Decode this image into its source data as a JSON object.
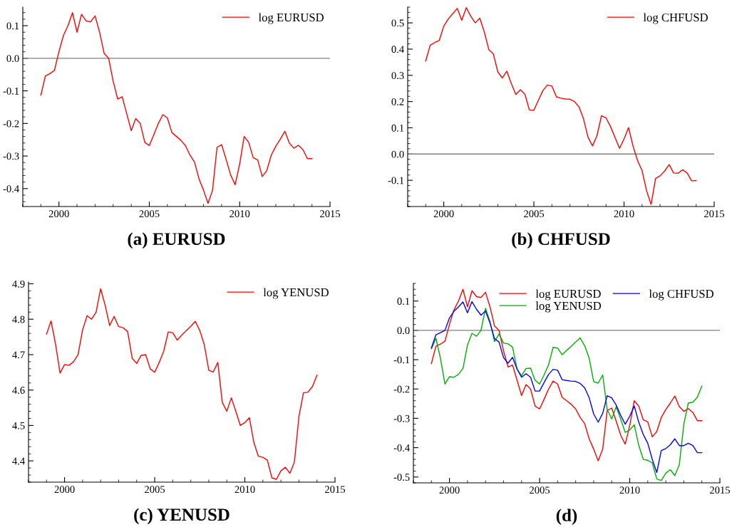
{
  "chart_data": [
    {
      "type": "line",
      "title": "(a) EURUSD",
      "legend": "top right",
      "grid": false,
      "marker": "none",
      "line_style": "solid",
      "x": [
        1999.0,
        1999.25,
        1999.5,
        1999.75,
        2000.0,
        2000.25,
        2000.5,
        2000.75,
        2001.0,
        2001.25,
        2001.5,
        2001.75,
        2002.0,
        2002.25,
        2002.5,
        2002.75,
        2003.0,
        2003.25,
        2003.5,
        2003.75,
        2004.0,
        2004.25,
        2004.5,
        2004.75,
        2005.0,
        2005.25,
        2005.5,
        2005.75,
        2006.0,
        2006.25,
        2006.5,
        2006.75,
        2007.0,
        2007.25,
        2007.5,
        2007.75,
        2008.0,
        2008.25,
        2008.5,
        2008.75,
        2009.0,
        2009.25,
        2009.5,
        2009.75,
        2010.0,
        2010.25,
        2010.5,
        2010.75,
        2011.0,
        2011.25,
        2011.5,
        2011.75,
        2012.0,
        2012.25,
        2012.5,
        2012.75,
        2013.0,
        2013.25,
        2013.5,
        2013.75,
        2014.0
      ],
      "series": [
        {
          "name": "log EURUSD",
          "color": "#ff0000",
          "values": [
            -0.113,
            -0.054,
            -0.047,
            -0.037,
            0.02,
            0.07,
            0.1,
            0.14,
            0.08,
            0.135,
            0.115,
            0.112,
            0.13,
            0.08,
            0.015,
            0.0,
            -0.07,
            -0.125,
            -0.118,
            -0.17,
            -0.222,
            -0.185,
            -0.2,
            -0.258,
            -0.268,
            -0.235,
            -0.2,
            -0.173,
            -0.183,
            -0.228,
            -0.24,
            -0.252,
            -0.268,
            -0.297,
            -0.318,
            -0.37,
            -0.405,
            -0.445,
            -0.405,
            -0.273,
            -0.265,
            -0.31,
            -0.358,
            -0.388,
            -0.325,
            -0.24,
            -0.258,
            -0.305,
            -0.312,
            -0.363,
            -0.345,
            -0.297,
            -0.27,
            -0.248,
            -0.224,
            -0.26,
            -0.276,
            -0.267,
            -0.28,
            -0.308,
            -0.308
          ]
        }
      ],
      "xlim": [
        1998,
        2015
      ],
      "xticks": [
        2000,
        2005,
        2010,
        2015
      ],
      "ylim": [
        -0.455,
        0.157
      ],
      "yticks": [
        {
          "value": -0.4,
          "label": "-0.4"
        },
        {
          "value": -0.3,
          "label": "-0.3"
        },
        {
          "value": -0.2,
          "label": "-0.2"
        },
        {
          "value": -0.1,
          "label": "-0.1"
        },
        {
          "value": 0,
          "label": "0.0"
        },
        {
          "value": 0.1,
          "label": "0.1"
        }
      ],
      "ref_lines": [
        {
          "axis": "y",
          "value": 0,
          "color": "#808080"
        }
      ]
    },
    {
      "type": "line",
      "title": "(b) CHFUSD",
      "legend": "top right",
      "grid": false,
      "marker": "none",
      "line_style": "solid",
      "x": [
        1999.0,
        1999.25,
        1999.5,
        1999.75,
        2000.0,
        2000.25,
        2000.5,
        2000.75,
        2001.0,
        2001.25,
        2001.5,
        2001.75,
        2002.0,
        2002.25,
        2002.5,
        2002.75,
        2003.0,
        2003.25,
        2003.5,
        2003.75,
        2004.0,
        2004.25,
        2004.5,
        2004.75,
        2005.0,
        2005.25,
        2005.5,
        2005.75,
        2006.0,
        2006.25,
        2006.5,
        2006.75,
        2007.0,
        2007.25,
        2007.5,
        2007.75,
        2008.0,
        2008.25,
        2008.5,
        2008.75,
        2009.0,
        2009.25,
        2009.5,
        2009.75,
        2010.0,
        2010.25,
        2010.5,
        2010.75,
        2011.0,
        2011.25,
        2011.5,
        2011.75,
        2012.0,
        2012.25,
        2012.5,
        2012.75,
        2013.0,
        2013.25,
        2013.5,
        2013.75,
        2014.0
      ],
      "series": [
        {
          "name": "log CHFUSD",
          "color": "#ff0000",
          "values": [
            0.355,
            0.415,
            0.425,
            0.433,
            0.487,
            0.515,
            0.535,
            0.555,
            0.51,
            0.558,
            0.525,
            0.5,
            0.518,
            0.465,
            0.398,
            0.382,
            0.313,
            0.29,
            0.316,
            0.268,
            0.227,
            0.245,
            0.228,
            0.168,
            0.167,
            0.205,
            0.242,
            0.263,
            0.259,
            0.218,
            0.213,
            0.21,
            0.209,
            0.2,
            0.18,
            0.135,
            0.065,
            0.031,
            0.07,
            0.146,
            0.138,
            0.105,
            0.063,
            0.022,
            0.057,
            0.101,
            0.03,
            -0.025,
            -0.063,
            -0.14,
            -0.192,
            -0.093,
            -0.083,
            -0.065,
            -0.04,
            -0.072,
            -0.073,
            -0.06,
            -0.072,
            -0.102,
            -0.101
          ]
        }
      ],
      "xlim": [
        1998,
        2015
      ],
      "xticks": [
        2000,
        2005,
        2010,
        2015
      ],
      "ylim": [
        -0.2,
        0.56
      ],
      "yticks": [
        {
          "value": -0.1,
          "label": "-0.1"
        },
        {
          "value": 0,
          "label": "0.0"
        },
        {
          "value": 0.1,
          "label": "0.1"
        },
        {
          "value": 0.2,
          "label": "0.2"
        },
        {
          "value": 0.3,
          "label": "0.3"
        },
        {
          "value": 0.4,
          "label": "0.4"
        },
        {
          "value": 0.5,
          "label": "0.5"
        }
      ],
      "ref_lines": [
        {
          "axis": "y",
          "value": 0,
          "color": "#808080"
        }
      ]
    },
    {
      "type": "line",
      "title": "(c) YENUSD",
      "legend": "top right",
      "grid": false,
      "marker": "none",
      "line_style": "solid",
      "x": [
        1999.0,
        1999.25,
        1999.5,
        1999.75,
        2000.0,
        2000.25,
        2000.5,
        2000.75,
        2001.0,
        2001.25,
        2001.5,
        2001.75,
        2002.0,
        2002.25,
        2002.5,
        2002.75,
        2003.0,
        2003.25,
        2003.5,
        2003.75,
        2004.0,
        2004.25,
        2004.5,
        2004.75,
        2005.0,
        2005.25,
        2005.5,
        2005.75,
        2006.0,
        2006.25,
        2006.5,
        2006.75,
        2007.0,
        2007.25,
        2007.5,
        2007.75,
        2008.0,
        2008.25,
        2008.5,
        2008.75,
        2009.0,
        2009.25,
        2009.5,
        2009.75,
        2010.0,
        2010.25,
        2010.5,
        2010.75,
        2011.0,
        2011.25,
        2011.5,
        2011.75,
        2012.0,
        2012.25,
        2012.5,
        2012.75,
        2013.0,
        2013.25,
        2013.5,
        2013.75,
        2014.0
      ],
      "series": [
        {
          "name": "log YENUSD",
          "color": "#ff0000",
          "values": [
            4.758,
            4.795,
            4.73,
            4.648,
            4.672,
            4.67,
            4.68,
            4.7,
            4.77,
            4.81,
            4.8,
            4.82,
            4.886,
            4.84,
            4.782,
            4.808,
            4.779,
            4.776,
            4.765,
            4.69,
            4.675,
            4.698,
            4.7,
            4.66,
            4.65,
            4.678,
            4.71,
            4.764,
            4.762,
            4.741,
            4.755,
            4.768,
            4.78,
            4.794,
            4.768,
            4.728,
            4.656,
            4.651,
            4.678,
            4.565,
            4.54,
            4.578,
            4.54,
            4.5,
            4.508,
            4.522,
            4.452,
            4.413,
            4.41,
            4.402,
            4.352,
            4.348,
            4.372,
            4.382,
            4.365,
            4.397,
            4.525,
            4.592,
            4.594,
            4.61,
            4.642
          ]
        }
      ],
      "xlim": [
        1998,
        2015
      ],
      "xticks": [
        2000,
        2005,
        2010,
        2015
      ],
      "ylim": [
        4.34,
        4.905
      ],
      "yticks": [
        4.4,
        4.5,
        4.6,
        4.7,
        4.8,
        4.9
      ]
    },
    {
      "type": "line",
      "title": "(d)",
      "legend": "top right",
      "grid": false,
      "marker": "none",
      "line_style": "solid",
      "x": [
        1999.0,
        1999.25,
        1999.5,
        1999.75,
        2000.0,
        2000.25,
        2000.5,
        2000.75,
        2001.0,
        2001.25,
        2001.5,
        2001.75,
        2002.0,
        2002.25,
        2002.5,
        2002.75,
        2003.0,
        2003.25,
        2003.5,
        2003.75,
        2004.0,
        2004.25,
        2004.5,
        2004.75,
        2005.0,
        2005.25,
        2005.5,
        2005.75,
        2006.0,
        2006.25,
        2006.5,
        2006.75,
        2007.0,
        2007.25,
        2007.5,
        2007.75,
        2008.0,
        2008.25,
        2008.5,
        2008.75,
        2009.0,
        2009.25,
        2009.5,
        2009.75,
        2010.0,
        2010.25,
        2010.5,
        2010.75,
        2011.0,
        2011.25,
        2011.5,
        2011.75,
        2012.0,
        2012.25,
        2012.5,
        2012.75,
        2013.0,
        2013.25,
        2013.5,
        2013.75,
        2014.0
      ],
      "series": [
        {
          "name": "log EURUSD",
          "color": "#ff0000",
          "values": [
            -0.113,
            -0.054,
            -0.047,
            -0.037,
            0.02,
            0.07,
            0.1,
            0.14,
            0.08,
            0.135,
            0.115,
            0.112,
            0.13,
            0.08,
            0.015,
            0.0,
            -0.07,
            -0.125,
            -0.118,
            -0.17,
            -0.222,
            -0.185,
            -0.2,
            -0.258,
            -0.268,
            -0.235,
            -0.2,
            -0.173,
            -0.183,
            -0.228,
            -0.24,
            -0.252,
            -0.268,
            -0.297,
            -0.318,
            -0.37,
            -0.405,
            -0.445,
            -0.405,
            -0.273,
            -0.265,
            -0.31,
            -0.358,
            -0.388,
            -0.325,
            -0.24,
            -0.258,
            -0.305,
            -0.312,
            -0.363,
            -0.345,
            -0.297,
            -0.27,
            -0.248,
            -0.224,
            -0.26,
            -0.276,
            -0.267,
            -0.28,
            -0.308,
            -0.308
          ]
        },
        {
          "name": "log YENUSD",
          "color": "#00b000",
          "values": [
            -0.063,
            -0.027,
            -0.095,
            -0.183,
            -0.158,
            -0.16,
            -0.15,
            -0.13,
            -0.05,
            -0.01,
            -0.02,
            0.0,
            0.075,
            0.03,
            -0.038,
            -0.012,
            -0.043,
            -0.046,
            -0.057,
            -0.132,
            -0.155,
            -0.13,
            -0.129,
            -0.17,
            -0.183,
            -0.152,
            -0.117,
            -0.058,
            -0.06,
            -0.083,
            -0.068,
            -0.055,
            -0.04,
            -0.026,
            -0.052,
            -0.095,
            -0.175,
            -0.18,
            -0.152,
            -0.27,
            -0.302,
            -0.26,
            -0.303,
            -0.348,
            -0.34,
            -0.322,
            -0.392,
            -0.44,
            -0.443,
            -0.452,
            -0.507,
            -0.512,
            -0.487,
            -0.475,
            -0.495,
            -0.458,
            -0.32,
            -0.248,
            -0.245,
            -0.228,
            -0.19
          ]
        },
        {
          "name": "log CHFUSD",
          "color": "#0000ff",
          "values": [
            -0.06,
            -0.015,
            -0.008,
            0.0,
            0.042,
            0.065,
            0.08,
            0.097,
            0.06,
            0.098,
            0.072,
            0.052,
            0.066,
            0.025,
            -0.028,
            -0.04,
            -0.093,
            -0.112,
            -0.092,
            -0.132,
            -0.16,
            -0.148,
            -0.16,
            -0.207,
            -0.207,
            -0.178,
            -0.15,
            -0.133,
            -0.136,
            -0.168,
            -0.171,
            -0.173,
            -0.174,
            -0.181,
            -0.196,
            -0.23,
            -0.285,
            -0.313,
            -0.283,
            -0.223,
            -0.23,
            -0.255,
            -0.29,
            -0.32,
            -0.293,
            -0.258,
            -0.313,
            -0.355,
            -0.385,
            -0.44,
            -0.485,
            -0.41,
            -0.403,
            -0.39,
            -0.37,
            -0.393,
            -0.393,
            -0.385,
            -0.393,
            -0.417,
            -0.417
          ]
        }
      ],
      "xlim": [
        1998,
        2015
      ],
      "xticks": [
        2000,
        2005,
        2010,
        2015
      ],
      "ylim": [
        -0.52,
        0.16
      ],
      "yticks": [
        {
          "value": -0.5,
          "label": "-0.5"
        },
        {
          "value": -0.4,
          "label": "-0.4"
        },
        {
          "value": -0.3,
          "label": "-0.3"
        },
        {
          "value": -0.2,
          "label": "-0.2"
        },
        {
          "value": -0.1,
          "label": "-0.1"
        },
        {
          "value": 0,
          "label": "0.0"
        },
        {
          "value": 0.1,
          "label": "0.1"
        }
      ],
      "ref_lines": [
        {
          "axis": "y",
          "value": 0,
          "color": "#808080"
        }
      ]
    }
  ]
}
